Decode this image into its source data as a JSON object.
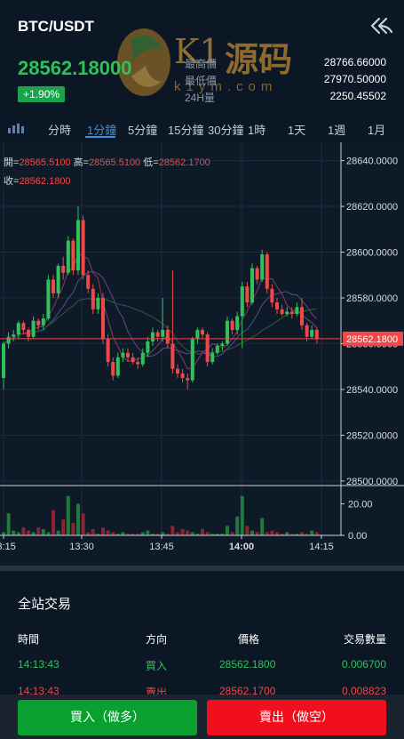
{
  "header": {
    "pair": "BTC/USDT",
    "price": "28562.18000",
    "change": "+1.90%",
    "stats": [
      {
        "label": "最高價",
        "value": "28766.66000"
      },
      {
        "label": "最低價",
        "value": "27970.50000"
      },
      {
        "label": "24H量",
        "value": "2250.45502"
      }
    ]
  },
  "watermark": {
    "brand": "K1",
    "text": "源码",
    "url": "k1ym.com"
  },
  "tabs": [
    "分時",
    "1分鐘",
    "5分鐘",
    "15分鐘",
    "30分鐘",
    "1時",
    "1天",
    "1週",
    "1月"
  ],
  "active_tab": "1分鐘",
  "ohlc": {
    "open_label": "開=",
    "open": "28565.5100",
    "high_label": "高=",
    "high": "28565.5100",
    "low_label": "低=",
    "low": "28562.1700",
    "close_label": "收=",
    "close": "28562.1800"
  },
  "chart_data": {
    "type": "candlestick",
    "price_axis": [
      "28640.0000",
      "28620.0000",
      "28600.0000",
      "28580.0000",
      "28560.0000",
      "28540.0000",
      "28520.0000",
      "28500.0000"
    ],
    "last_price_label": "28562.1800",
    "last_price": 28562.18,
    "ylim": [
      28498,
      28648
    ],
    "volume_axis": [
      "20.00",
      "0.00"
    ],
    "volume_ylim": [
      0,
      26
    ],
    "time_axis": [
      "13:15",
      "13:30",
      "13:45",
      "14:00",
      "14:15"
    ],
    "candles": [
      [
        28545,
        28560,
        28540,
        28561
      ],
      [
        28560,
        28563,
        28558,
        28565
      ],
      [
        28563,
        28564,
        28561,
        28566
      ],
      [
        28564,
        28569,
        28562,
        28570
      ],
      [
        28569,
        28566,
        28564,
        28570
      ],
      [
        28566,
        28563,
        28561,
        28567
      ],
      [
        28563,
        28570,
        28562,
        28572
      ],
      [
        28570,
        28568,
        28566,
        28571
      ],
      [
        28568,
        28571,
        28566,
        28573
      ],
      [
        28571,
        28588,
        28570,
        28590
      ],
      [
        28588,
        28582,
        28580,
        28590
      ],
      [
        28582,
        28594,
        28580,
        28595
      ],
      [
        28594,
        28591,
        28588,
        28598
      ],
      [
        28591,
        28605,
        28590,
        28607
      ],
      [
        28605,
        28592,
        28590,
        28606
      ],
      [
        28592,
        28614,
        28590,
        28620
      ],
      [
        28614,
        28590,
        28588,
        28616
      ],
      [
        28590,
        28584,
        28582,
        28592
      ],
      [
        28584,
        28575,
        28573,
        28586
      ],
      [
        28575,
        28580,
        28573,
        28582
      ],
      [
        28580,
        28562,
        28560,
        28582
      ],
      [
        28562,
        28552,
        28550,
        28564
      ],
      [
        28552,
        28546,
        28544,
        28554
      ],
      [
        28546,
        28554,
        28545,
        28556
      ],
      [
        28554,
        28556,
        28552,
        28558
      ],
      [
        28556,
        28554,
        28552,
        28558
      ],
      [
        28554,
        28552,
        28551,
        28556
      ],
      [
        28552,
        28551,
        28549,
        28554
      ],
      [
        28551,
        28556,
        28550,
        28558
      ],
      [
        28556,
        28561,
        28554,
        28563
      ],
      [
        28561,
        28565,
        28559,
        28567
      ],
      [
        28565,
        28563,
        28561,
        28566
      ],
      [
        28563,
        28566,
        28561,
        28580
      ],
      [
        28566,
        28560,
        28558,
        28568
      ],
      [
        28560,
        28549,
        28547,
        28592
      ],
      [
        28549,
        28547,
        28545,
        28551
      ],
      [
        28547,
        28545,
        28543,
        28549
      ],
      [
        28545,
        28544,
        28540,
        28547
      ],
      [
        28544,
        28562,
        28543,
        28563
      ],
      [
        28562,
        28566,
        28560,
        28567
      ],
      [
        28566,
        28564,
        28562,
        28567
      ],
      [
        28564,
        28552,
        28550,
        28565
      ],
      [
        28552,
        28556,
        28551,
        28558
      ],
      [
        28556,
        28559,
        28555,
        28560
      ],
      [
        28559,
        28560,
        28557,
        28561
      ],
      [
        28560,
        28570,
        28559,
        28572
      ],
      [
        28570,
        28566,
        28564,
        28571
      ],
      [
        28566,
        28572,
        28564,
        28574
      ],
      [
        28572,
        28585,
        28558,
        28587
      ],
      [
        28585,
        28578,
        28576,
        28587
      ],
      [
        28578,
        28593,
        28577,
        28595
      ],
      [
        28593,
        28588,
        28586,
        28594
      ],
      [
        28588,
        28599,
        28587,
        28601
      ],
      [
        28599,
        28584,
        28582,
        28600
      ],
      [
        28584,
        28578,
        28576,
        28586
      ],
      [
        28578,
        28575,
        28573,
        28580
      ],
      [
        28575,
        28573,
        28572,
        28577
      ],
      [
        28573,
        28574,
        28572,
        28576
      ],
      [
        28574,
        28573,
        28571,
        28576
      ],
      [
        28573,
        28576,
        28572,
        28578
      ],
      [
        28576,
        28568,
        28566,
        28580
      ],
      [
        28568,
        28563,
        28561,
        28569
      ],
      [
        28563,
        28566,
        28562,
        28568
      ],
      [
        28566,
        28562,
        28560,
        28567
      ]
    ],
    "volumes": [
      2,
      14,
      3,
      2,
      5,
      3,
      2,
      5,
      4,
      2,
      16,
      3,
      10,
      25,
      8,
      20,
      14,
      2,
      4,
      1,
      5,
      3,
      2,
      1,
      2,
      1,
      1,
      1,
      2,
      3,
      1,
      1,
      2,
      1,
      6,
      2,
      4,
      3,
      2,
      1,
      4,
      2,
      1,
      1,
      1,
      6,
      2,
      12,
      25,
      6,
      3,
      2,
      11,
      2,
      3,
      2,
      1,
      2,
      1,
      1,
      2,
      1,
      3,
      2
    ]
  },
  "trades": {
    "title": "全站交易",
    "headers": [
      "時間",
      "方向",
      "價格",
      "交易數量"
    ],
    "rows": [
      {
        "time": "14:13:43",
        "side": "買入",
        "price": "28562.1800",
        "qty": "0.006700",
        "type": "buy"
      },
      {
        "time": "14:13:43",
        "side": "賣出",
        "price": "28562.1700",
        "qty": "0.008823",
        "type": "sell"
      }
    ]
  },
  "actions": {
    "buy": "買入（做多）",
    "sell": "賣出（做空）"
  },
  "colors": {
    "up": "#2fc25b",
    "down": "#f04848",
    "accent": "#3d8fd9",
    "buy_button": "#0aa030",
    "sell_button": "#f20f1c"
  }
}
